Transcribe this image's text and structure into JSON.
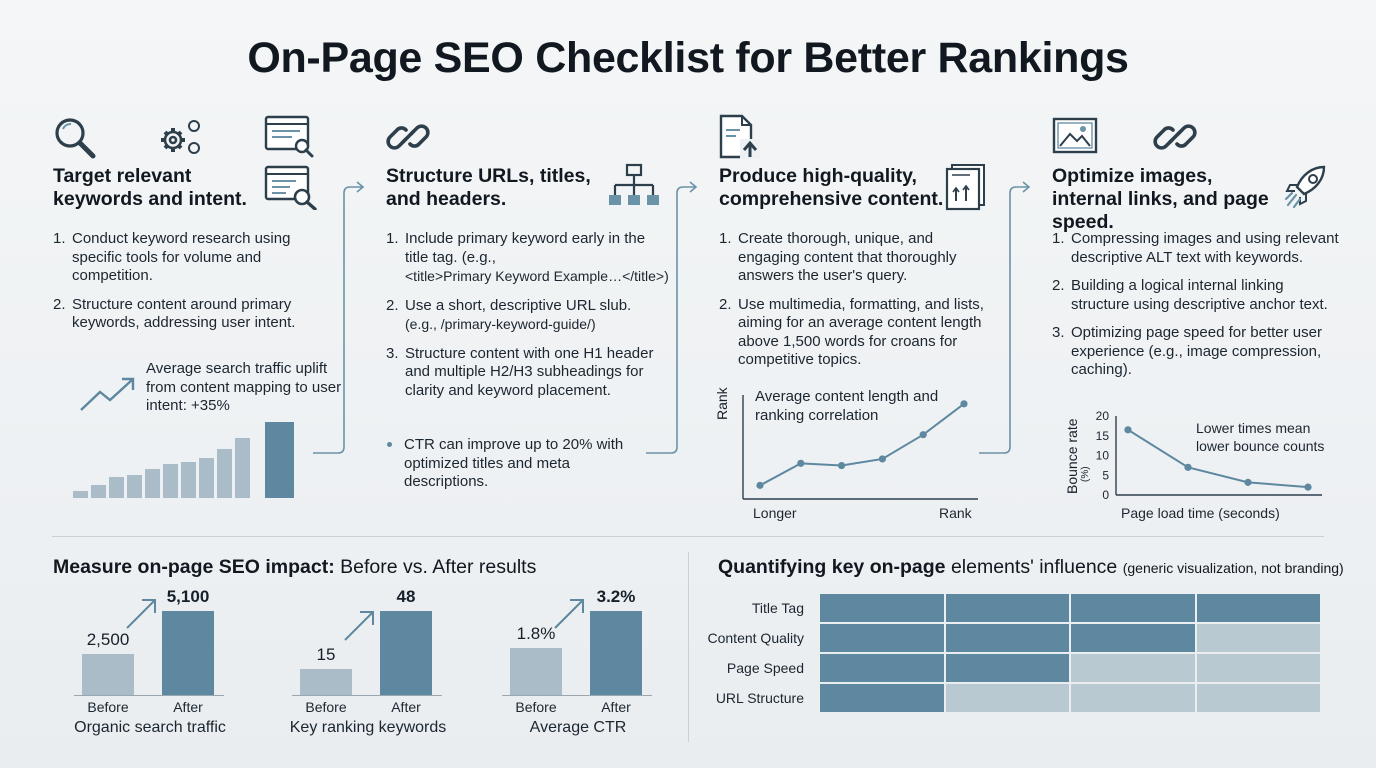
{
  "title": "On-Page SEO Checklist for Better Rankings",
  "colors": {
    "dark_bar": "#5d889f",
    "light_bar": "#a9bcc7",
    "line": "#5d889f",
    "icon": "#2e3f4c",
    "icon_accent": "#6b93a8"
  },
  "columns": [
    {
      "heading": "Target relevant keywords and intent.",
      "icons": [
        "magnifier-icon",
        "gears-icon",
        "browser-search-icon",
        "browser-list-search-icon"
      ],
      "steps": [
        {
          "num": "1.",
          "text": "Conduct keyword research using specific tools for volume and competition."
        },
        {
          "num": "2.",
          "text": "Structure content around primary keywords, addressing user intent."
        }
      ],
      "stat_text": "Average search traffic uplift from content mapping to user intent: +35%",
      "mini_bars": [
        6,
        11,
        17,
        19,
        24,
        28,
        29,
        33,
        40,
        49,
        62
      ]
    },
    {
      "heading": "Structure URLs, titles, and headers.",
      "icons": [
        "link-icon",
        "sitemap-icon"
      ],
      "steps": [
        {
          "num": "1.",
          "text": "Include primary keyword early in the title tag. (e.g.,",
          "code": "<title>Primary Keyword Example…</title>)"
        },
        {
          "num": "2.",
          "text": "Use a short, descriptive URL slub.",
          "code": "(e.g., /primary-keyword-guide/)"
        },
        {
          "num": "3.",
          "text": "Structure content with one H1 header and multiple H2/H3 subheadings for clarity and keyword placement."
        }
      ],
      "bullet": "CTR can improve up to 20% with optimized titles and meta descriptions."
    },
    {
      "heading": "Produce high-quality, comprehensive content.",
      "icons": [
        "document-upload-icon",
        "document-chart-icon"
      ],
      "steps": [
        {
          "num": "1.",
          "text": "Create thorough, unique, and engaging content that thoroughly answers the user's query."
        },
        {
          "num": "2.",
          "text": "Use multimedia, formatting, and lists, aiming for an average content length above 1,500 words for croans for competitive topics."
        }
      ]
    },
    {
      "heading": "Optimize images, internal links, and page speed.",
      "icons": [
        "image-icon",
        "link-icon",
        "rocket-icon"
      ],
      "steps": [
        {
          "num": "1.",
          "text": "Compressing images and using relevant descriptive ALT text with keywords."
        },
        {
          "num": "2.",
          "text": "Building a logical internal linking structure using descriptive anchor text."
        },
        {
          "num": "3.",
          "text": "Optimizing page speed for better user experience (e.g., image compression, caching)."
        }
      ]
    }
  ],
  "chart_data": [
    {
      "type": "line",
      "title": "Average content length and ranking correlation",
      "ylabel": "Rank",
      "x_tick_labels": [
        "Longer",
        "Rank"
      ],
      "x": [
        1,
        2,
        3,
        4,
        5,
        6
      ],
      "y": [
        1.5,
        6.5,
        6,
        7.5,
        13,
        20
      ],
      "ylim": [
        0,
        22
      ]
    },
    {
      "type": "line",
      "title": "Lower times mean lower bounce counts",
      "xlabel": "Page load time (seconds)",
      "ylabel": "Bounce rate",
      "ylabel_unit": "(%)",
      "y_ticks": [
        "20",
        "15",
        "10",
        "5",
        "0"
      ],
      "x": [
        1,
        2,
        3,
        4
      ],
      "y": [
        16.5,
        7,
        3.2,
        2
      ],
      "ylim": [
        0,
        20
      ]
    },
    {
      "type": "bar",
      "title": "Organic search traffic",
      "categories": [
        "Before",
        "After"
      ],
      "values": [
        2500,
        5100
      ],
      "value_labels": [
        "2,500",
        "5,100"
      ],
      "ylim": [
        0,
        5100
      ]
    },
    {
      "type": "bar",
      "title": "Key ranking keywords",
      "categories": [
        "Before",
        "After"
      ],
      "values": [
        15,
        48
      ],
      "value_labels": [
        "15",
        "48"
      ],
      "ylim": [
        0,
        48
      ]
    },
    {
      "type": "bar",
      "title": "Average CTR",
      "categories": [
        "Before",
        "After"
      ],
      "values": [
        1.8,
        3.2
      ],
      "value_labels": [
        "1.8%",
        "3.2%"
      ],
      "ylim": [
        0,
        3.2
      ]
    },
    {
      "type": "heatmap",
      "rows": [
        "Title Tag",
        "Content Quality",
        "Page Speed",
        "URL Structure"
      ],
      "levels": [
        [
          1,
          1,
          1,
          1
        ],
        [
          1,
          1,
          1,
          0
        ],
        [
          1,
          1,
          0,
          0
        ],
        [
          1,
          0,
          0,
          0
        ]
      ]
    }
  ],
  "bottom": {
    "left_title_bold": "Measure on-page SEO impact:",
    "left_title_rest": " Before vs. After results",
    "right_title_bold": "Quantifying key on-page",
    "right_title_rest": " elements' influence ",
    "right_title_small": "(generic visualization, not branding)"
  }
}
